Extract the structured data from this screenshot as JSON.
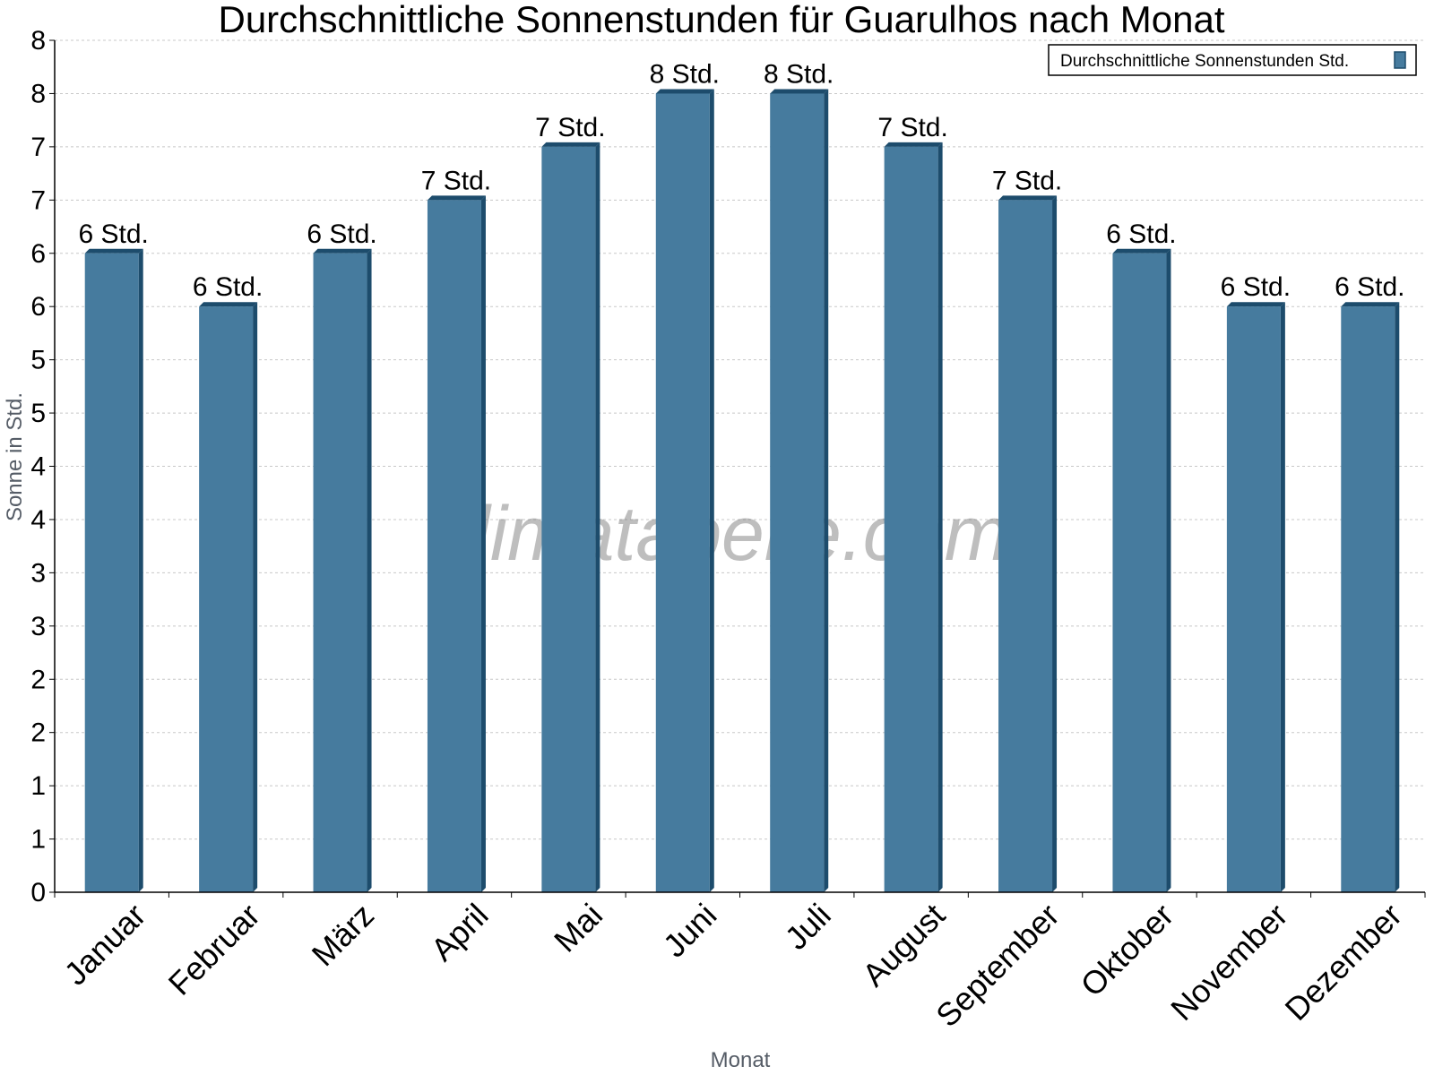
{
  "chart_data": {
    "type": "bar",
    "title": "Durchschnittliche Sonnenstunden für Guarulhos nach Monat",
    "xlabel": "Monat",
    "ylabel": "Sonne in Std.",
    "categories": [
      "Januar",
      "Februar",
      "März",
      "April",
      "Mai",
      "Juni",
      "Juli",
      "August",
      "September",
      "Oktober",
      "November",
      "Dezember"
    ],
    "series": [
      {
        "name": "Durchschnittliche Sonnenstunden Std.",
        "values": [
          6.0,
          5.5,
          6.0,
          6.5,
          7.0,
          7.5,
          7.5,
          7.0,
          6.5,
          6.0,
          5.5,
          5.5
        ],
        "data_labels": [
          "6 Std.",
          "6 Std.",
          "6 Std.",
          "7 Std.",
          "7 Std.",
          "8 Std.",
          "8 Std.",
          "7 Std.",
          "7 Std.",
          "6 Std.",
          "6 Std.",
          "6 Std."
        ]
      }
    ],
    "ylim": [
      0,
      8
    ],
    "y_ticks": [
      0,
      0.5,
      1,
      1.5,
      2,
      2.5,
      3,
      3.5,
      4,
      4.5,
      5,
      5.5,
      6,
      6.5,
      7,
      7.5,
      8
    ],
    "y_tick_labels": [
      "0",
      "1",
      "1",
      "2",
      "2",
      "3",
      "3",
      "4",
      "4",
      "5",
      "5",
      "6",
      "6",
      "7",
      "7",
      "8",
      "8"
    ],
    "grid": true,
    "legend_position": "top-right",
    "colors": {
      "bar": "#467b9e",
      "bar_side": "#1d4c6c",
      "bar_top": "#1d4c6c"
    }
  },
  "watermark": "klimatabelle.com"
}
